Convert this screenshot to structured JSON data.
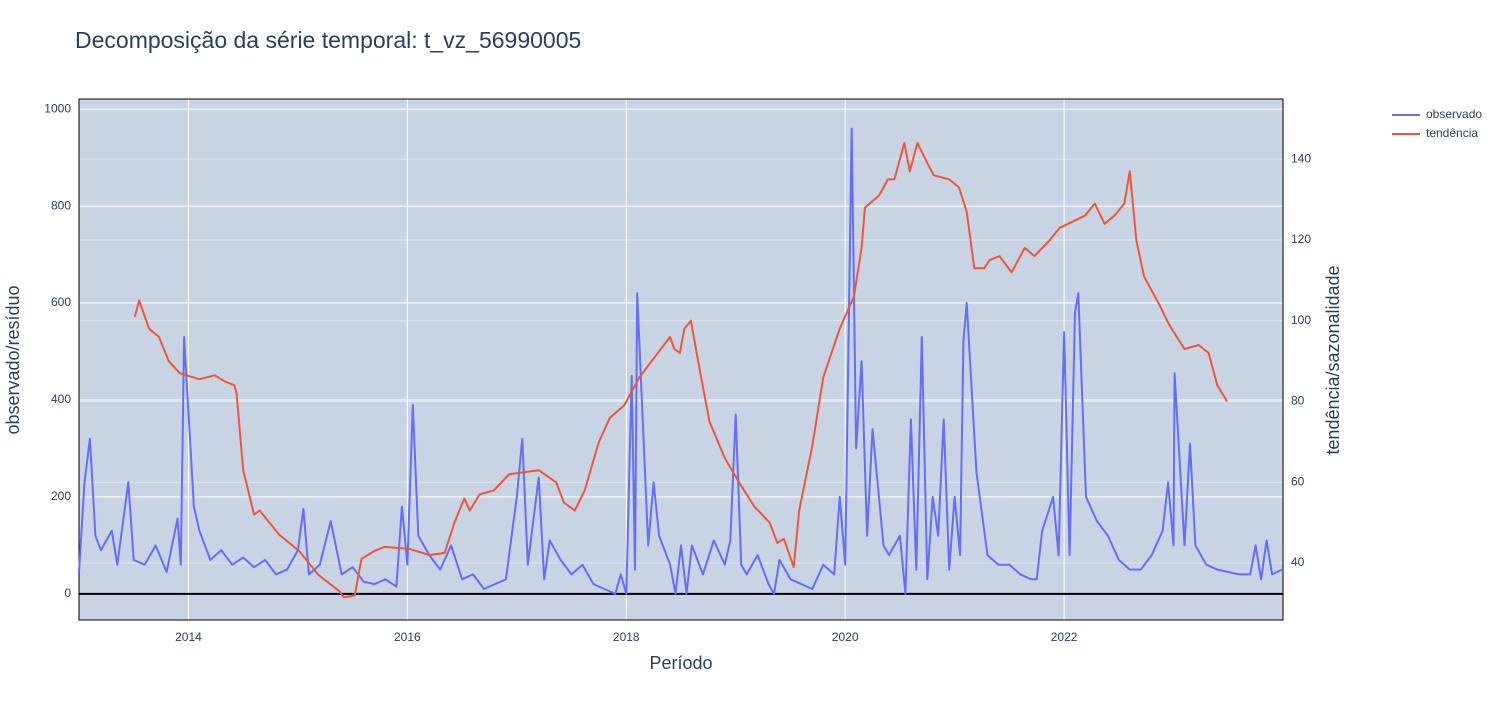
{
  "chart_data": {
    "type": "line",
    "title": "Decomposição da série temporal: t_vz_56990005",
    "x_label": "Período",
    "y_label": "observado/resíduo",
    "y2_label": "tendência/sazonalidade",
    "xlim": [
      2013.0,
      2024.0
    ],
    "xticks": [
      2014,
      2016,
      2018,
      2020,
      2022
    ],
    "ylim": [
      -54,
      1021
    ],
    "yticks": [
      0,
      200,
      400,
      600,
      800,
      1000
    ],
    "y2lim": [
      25.9,
      154.9
    ],
    "y2ticks": [
      40,
      60,
      80,
      100,
      120,
      140
    ],
    "grid": true,
    "legend": "right",
    "series": [
      {
        "name": "observado",
        "color": "#636efa",
        "x": [
          2013.0,
          2013.05,
          2013.1,
          2013.15,
          2013.2,
          2013.3,
          2013.35,
          2013.45,
          2013.5,
          2013.6,
          2013.7,
          2013.8,
          2013.9,
          2013.93,
          2013.96,
          2014.05,
          2014.1,
          2014.2,
          2014.3,
          2014.4,
          2014.5,
          2014.6,
          2014.7,
          2014.8,
          2014.9,
          2015.0,
          2015.05,
          2015.1,
          2015.2,
          2015.3,
          2015.4,
          2015.5,
          2015.6,
          2015.7,
          2015.8,
          2015.9,
          2015.95,
          2016.0,
          2016.05,
          2016.1,
          2016.2,
          2016.3,
          2016.4,
          2016.5,
          2016.6,
          2016.7,
          2016.8,
          2016.9,
          2017.0,
          2017.05,
          2017.1,
          2017.2,
          2017.25,
          2017.3,
          2017.4,
          2017.5,
          2017.6,
          2017.7,
          2017.8,
          2017.9,
          2017.95,
          2018.0,
          2018.05,
          2018.08,
          2018.1,
          2018.2,
          2018.25,
          2018.3,
          2018.4,
          2018.45,
          2018.5,
          2018.55,
          2018.6,
          2018.7,
          2018.8,
          2018.9,
          2018.95,
          2019.0,
          2019.05,
          2019.1,
          2019.2,
          2019.3,
          2019.35,
          2019.4,
          2019.5,
          2019.6,
          2019.7,
          2019.8,
          2019.9,
          2019.95,
          2020.0,
          2020.06,
          2020.1,
          2020.15,
          2020.2,
          2020.25,
          2020.3,
          2020.35,
          2020.4,
          2020.5,
          2020.55,
          2020.6,
          2020.65,
          2020.7,
          2020.75,
          2020.8,
          2020.85,
          2020.9,
          2020.95,
          2021.0,
          2021.05,
          2021.08,
          2021.11,
          2021.2,
          2021.3,
          2021.4,
          2021.5,
          2021.6,
          2021.7,
          2021.75,
          2021.8,
          2021.9,
          2021.95,
          2022.0,
          2022.05,
          2022.1,
          2022.13,
          2022.2,
          2022.3,
          2022.4,
          2022.5,
          2022.6,
          2022.7,
          2022.8,
          2022.9,
          2022.95,
          2023.0,
          2023.01,
          2023.1,
          2023.15,
          2023.2,
          2023.3,
          2023.4,
          2023.5,
          2023.6,
          2023.7,
          2023.75,
          2023.8,
          2023.85,
          2023.9,
          2023.99
        ],
        "values": [
          45,
          230,
          320,
          120,
          90,
          130,
          60,
          230,
          70,
          60,
          100,
          45,
          155,
          60,
          530,
          180,
          130,
          70,
          90,
          60,
          75,
          55,
          70,
          40,
          50,
          90,
          175,
          40,
          60,
          150,
          40,
          55,
          25,
          20,
          30,
          15,
          180,
          60,
          390,
          120,
          80,
          50,
          100,
          30,
          40,
          10,
          20,
          30,
          200,
          320,
          60,
          240,
          30,
          110,
          70,
          40,
          60,
          20,
          10,
          0,
          40,
          0,
          450,
          50,
          620,
          100,
          230,
          120,
          60,
          0,
          100,
          0,
          100,
          40,
          110,
          60,
          110,
          370,
          60,
          40,
          80,
          20,
          0,
          70,
          30,
          20,
          10,
          60,
          40,
          200,
          60,
          960,
          300,
          480,
          120,
          340,
          220,
          100,
          80,
          120,
          0,
          360,
          50,
          530,
          30,
          200,
          120,
          360,
          50,
          200,
          80,
          520,
          600,
          250,
          80,
          60,
          60,
          40,
          30,
          30,
          130,
          200,
          80,
          540,
          80,
          580,
          620,
          200,
          150,
          120,
          70,
          50,
          50,
          80,
          130,
          230,
          100,
          455,
          100,
          310,
          100,
          60,
          50,
          45,
          40,
          40,
          100,
          30,
          110,
          40,
          50
        ]
      },
      {
        "name": "tendência",
        "color": "#ef553b",
        "axis": "y2",
        "x": [
          2013.51,
          2013.55,
          2013.64,
          2013.73,
          2013.82,
          2013.92,
          2014.1,
          2014.24,
          2014.33,
          2014.42,
          2014.44,
          2014.5,
          2014.6,
          2014.65,
          2014.83,
          2015.01,
          2015.19,
          2015.38,
          2015.42,
          2015.52,
          2015.58,
          2015.7,
          2015.79,
          2016.02,
          2016.2,
          2016.34,
          2016.43,
          2016.52,
          2016.57,
          2016.66,
          2016.79,
          2016.93,
          2017.2,
          2017.36,
          2017.43,
          2017.53,
          2017.62,
          2017.75,
          2017.85,
          2017.98,
          2018.12,
          2018.26,
          2018.4,
          2018.44,
          2018.49,
          2018.53,
          2018.59,
          2018.67,
          2018.76,
          2018.9,
          2019.03,
          2019.17,
          2019.31,
          2019.38,
          2019.44,
          2019.53,
          2019.58,
          2019.7,
          2019.8,
          2019.95,
          2020.08,
          2020.15,
          2020.18,
          2020.31,
          2020.39,
          2020.45,
          2020.54,
          2020.59,
          2020.66,
          2020.77,
          2020.81,
          2020.95,
          2021.04,
          2021.11,
          2021.18,
          2021.27,
          2021.32,
          2021.41,
          2021.52,
          2021.64,
          2021.73,
          2021.87,
          2021.96,
          2022.19,
          2022.28,
          2022.37,
          2022.46,
          2022.55,
          2022.6,
          2022.66,
          2022.73,
          2022.87,
          2022.96,
          2023.1,
          2023.23,
          2023.32,
          2023.4,
          2023.49
        ],
        "values": [
          101,
          105,
          98,
          96,
          90,
          87,
          85.5,
          86.5,
          85,
          84,
          82,
          63,
          52,
          53,
          47,
          43,
          37,
          33,
          31.5,
          32,
          41,
          43,
          44,
          43.5,
          42,
          42.5,
          50,
          56,
          53,
          57,
          58,
          62,
          63,
          60,
          55,
          53,
          58,
          70,
          76,
          79,
          86,
          91,
          96,
          93,
          92,
          98,
          100,
          88,
          75,
          66,
          60,
          54,
          50,
          45,
          46,
          39,
          53,
          69,
          86,
          98,
          106,
          118,
          128,
          131,
          135,
          135,
          144,
          137,
          144,
          138,
          136,
          135,
          133,
          127,
          113,
          113,
          115,
          116,
          112,
          118,
          116,
          120,
          123,
          126,
          129,
          124,
          126,
          129,
          137,
          120,
          111,
          104,
          99,
          93,
          94,
          92,
          84,
          80
        ]
      }
    ]
  }
}
